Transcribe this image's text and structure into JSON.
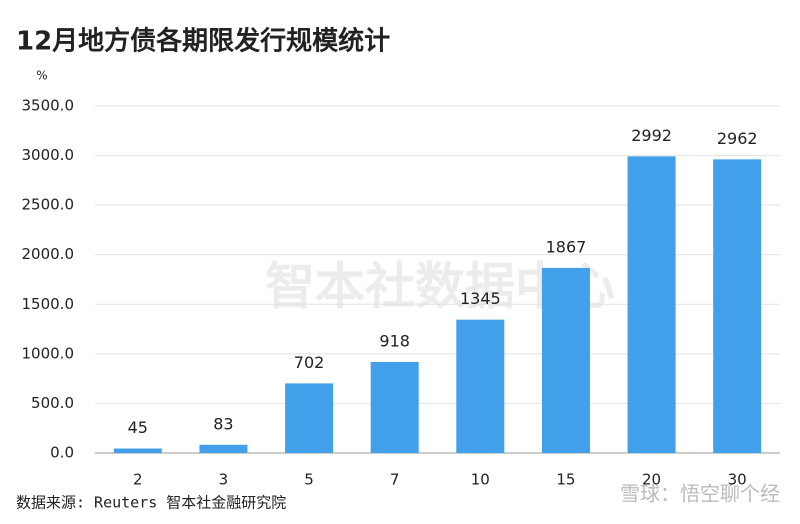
{
  "chart_data": {
    "type": "bar",
    "title": "12月地方债各期限发行规模统计",
    "y_unit": "%",
    "categories": [
      "2",
      "3",
      "5",
      "7",
      "10",
      "15",
      "20",
      "30"
    ],
    "values": [
      45,
      83,
      702,
      918,
      1345,
      1867,
      2992,
      2962
    ],
    "color": "#42a0ea",
    "ylim": [
      0,
      3500
    ],
    "yticks": [
      {
        "value": 0,
        "label": "0.0"
      },
      {
        "value": 500,
        "label": "500.0"
      },
      {
        "value": 1000,
        "label": "1000.0"
      },
      {
        "value": 1500,
        "label": "1500.0"
      },
      {
        "value": 2000,
        "label": "2000.0"
      },
      {
        "value": 2500,
        "label": "2500.0"
      },
      {
        "value": 3000,
        "label": "3000.0"
      },
      {
        "value": 3500,
        "label": "3500.0"
      }
    ],
    "grid": true,
    "source": "数据来源: Reuters 智本社金融研究院",
    "watermark": "智本社数据中心",
    "credit": "雪球：悟空聊个经"
  }
}
